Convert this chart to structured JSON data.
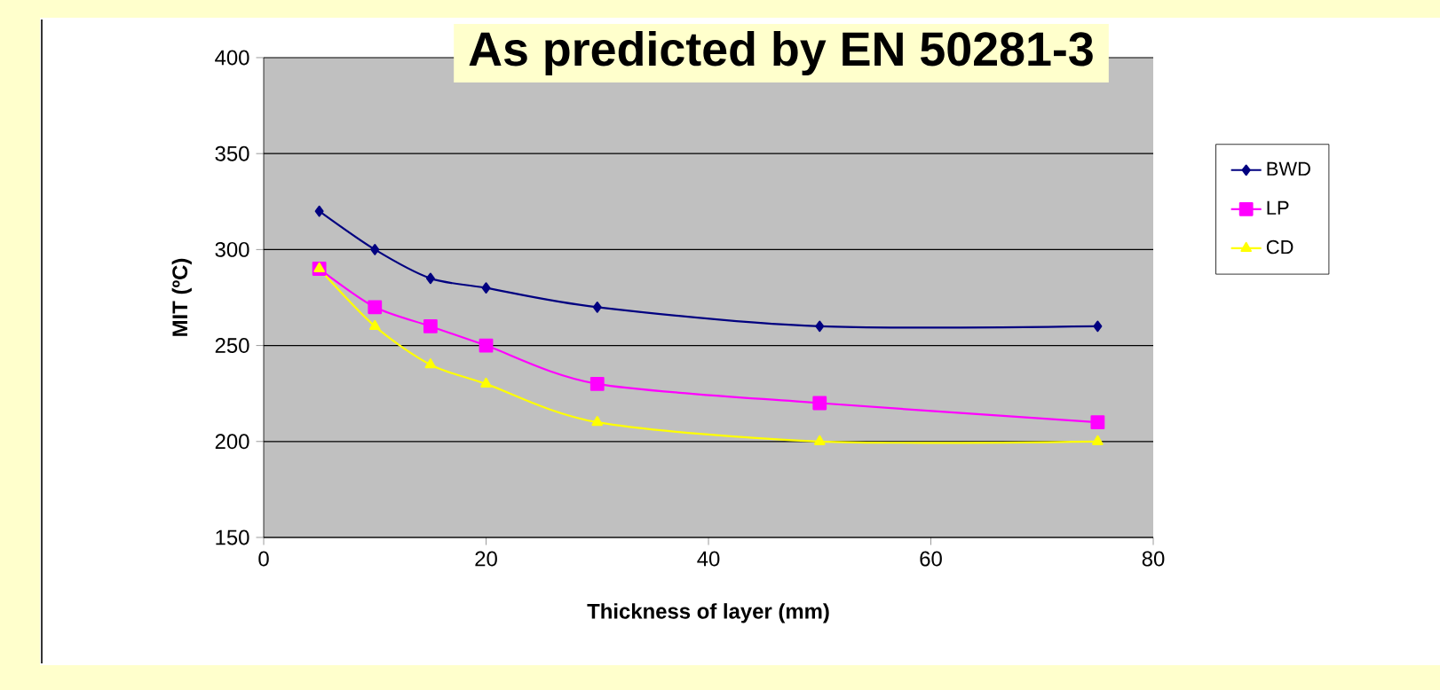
{
  "chart_data": {
    "type": "line",
    "title": "As predicted by EN 50281-3",
    "xlabel": "Thickness of layer (mm)",
    "ylabel": "MIT (ºC)",
    "x": [
      5,
      10,
      15,
      20,
      30,
      50,
      75
    ],
    "series": [
      {
        "name": "BWD",
        "color": "#000080",
        "marker": "diamond",
        "values": [
          320,
          300,
          285,
          280,
          270,
          260,
          260
        ]
      },
      {
        "name": "LP",
        "color": "#ff00ff",
        "marker": "square",
        "values": [
          290,
          270,
          260,
          250,
          230,
          220,
          210
        ]
      },
      {
        "name": "CD",
        "color": "#ffff00",
        "marker": "triangle",
        "values": [
          290,
          260,
          240,
          230,
          210,
          200,
          200
        ]
      }
    ],
    "xlim": [
      0,
      80
    ],
    "ylim": [
      150,
      400
    ],
    "xticks": [
      0,
      20,
      40,
      60,
      80
    ],
    "yticks": [
      150,
      200,
      250,
      300,
      350,
      400
    ],
    "grid": "y",
    "legend": "right"
  }
}
